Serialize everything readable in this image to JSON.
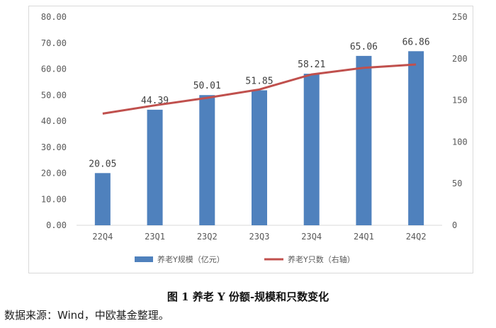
{
  "chart_data": {
    "type": "bar",
    "categories": [
      "22Q4",
      "23Q1",
      "23Q2",
      "23Q3",
      "23Q4",
      "24Q1",
      "24Q2"
    ],
    "series": [
      {
        "name": "养老Y规模（亿元）",
        "type": "bar",
        "axis": "left",
        "color": "#4f81bd",
        "values": [
          20.05,
          44.39,
          50.01,
          51.85,
          58.21,
          65.06,
          66.86
        ],
        "labels": [
          "20.05",
          "44.39",
          "50.01",
          "51.85",
          "58.21",
          "65.06",
          "66.86"
        ]
      },
      {
        "name": "养老Y只数（右轴）",
        "type": "line",
        "axis": "right",
        "color": "#c0504d",
        "values": [
          134,
          144,
          153,
          163,
          181,
          189,
          193
        ]
      }
    ],
    "y_left": {
      "ylim": [
        0,
        80
      ],
      "ticks": [
        "0.00",
        "10.00",
        "20.00",
        "30.00",
        "40.00",
        "50.00",
        "60.00",
        "70.00",
        "80.00"
      ]
    },
    "y_right": {
      "ylim": [
        0,
        250
      ],
      "ticks": [
        "0",
        "50",
        "100",
        "150",
        "200",
        "250"
      ]
    },
    "legend_position": "bottom",
    "grid": false
  },
  "caption": "图 1  养老 Y 份额-规模和只数变化",
  "source": "数据来源：Wind，中欧基金整理。"
}
